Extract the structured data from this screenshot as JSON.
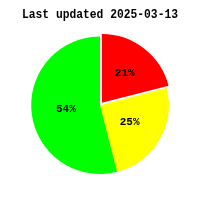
{
  "chart_data": {
    "type": "pie",
    "title": "Last updated 2025-03-13",
    "values": [
      21,
      25,
      54
    ],
    "value_labels": [
      "21%",
      "25%",
      "54%"
    ],
    "colors": [
      "#ff0000",
      "#ffff00",
      "#00ff00"
    ],
    "data_labels": true
  }
}
